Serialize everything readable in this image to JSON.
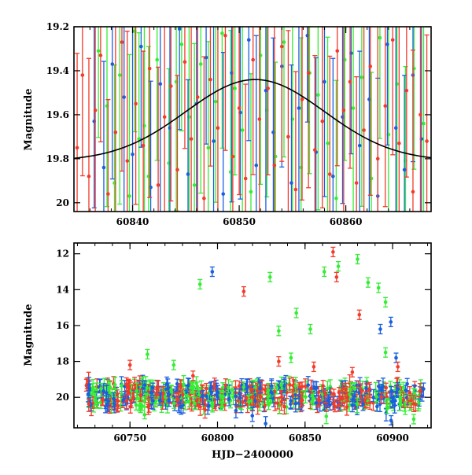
{
  "colors": {
    "green": "#33ee33",
    "blue": "#1a5fe0",
    "red": "#f23b2a",
    "model": "#000000",
    "axis": "#000000"
  },
  "chart_data": [
    {
      "type": "scatter",
      "title": "",
      "xlabel": "",
      "ylabel": "Magnitude",
      "xlim": [
        60834.5,
        60868
      ],
      "ylim": [
        20.04,
        19.2
      ],
      "y_inverted": true,
      "grid": false,
      "xticks": [
        60840,
        60850,
        60860
      ],
      "xtick_labels": [
        "60840",
        "60850",
        "60860"
      ],
      "yticks": [
        19.2,
        19.4,
        19.6,
        19.8,
        20.0
      ],
      "ytick_labels": [
        "19.2",
        "19.4",
        "19.6",
        "19.8",
        "20"
      ],
      "model_curve": {
        "center": 60851.5,
        "peak_mag": 19.44,
        "base_mag": 19.81,
        "width_days": 6.5
      },
      "series": [
        {
          "color": "green",
          "x": [
            60836.8,
            60837.6,
            60838.3,
            60838.8,
            60839.7,
            60840.2,
            60840.6,
            60841.1,
            60841.5,
            60842.3,
            60843.4,
            60844.1,
            60844.6,
            60845.3,
            60845.8,
            60846.4,
            60847.1,
            60847.8,
            60848.4,
            60849.2,
            60849.6,
            60850.3,
            60851.1,
            60852.0,
            60852.6,
            60853.4,
            60854.2,
            60855.0,
            60855.8,
            60856.6,
            60857.4,
            60858.3,
            60859.1,
            60859.9,
            60860.7,
            60861.5,
            60862.4,
            60863.2,
            60864.0,
            60864.8,
            60865.6,
            60866.4,
            60867.3
          ],
          "y": [
            19.31,
            19.56,
            19.91,
            19.42,
            19.97,
            19.22,
            19.71,
            19.65,
            19.88,
            19.35,
            19.82,
            19.45,
            19.28,
            19.61,
            19.92,
            19.37,
            19.75,
            19.54,
            19.23,
            19.86,
            19.48,
            19.67,
            19.95,
            19.33,
            19.58,
            19.79,
            19.27,
            19.62,
            19.84,
            19.41,
            19.51,
            19.73,
            19.98,
            19.35,
            19.57,
            19.43,
            19.89,
            19.25,
            19.69,
            19.46,
            19.81,
            19.39,
            19.64
          ]
        },
        {
          "color": "blue",
          "x": [
            60836.4,
            60837.3,
            60838.1,
            60839.2,
            60840.0,
            60840.8,
            60841.7,
            60842.6,
            60843.5,
            60844.4,
            60845.2,
            60846.0,
            60846.9,
            60847.6,
            60848.5,
            60849.3,
            60850.1,
            60850.9,
            60851.6,
            60852.5,
            60853.2,
            60854.0,
            60854.9,
            60855.6,
            60856.4,
            60857.2,
            60858.0,
            60858.8,
            60859.7,
            60860.5,
            60861.3,
            60862.2,
            60863.0,
            60863.9,
            60864.7,
            60865.5,
            60866.3,
            60867.1
          ],
          "y": [
            19.63,
            19.84,
            19.37,
            19.52,
            19.78,
            19.29,
            19.93,
            19.46,
            19.66,
            19.21,
            19.87,
            19.55,
            19.34,
            19.72,
            19.96,
            19.41,
            19.59,
            19.26,
            19.83,
            19.49,
            19.68,
            19.38,
            19.91,
            19.57,
            19.24,
            19.77,
            19.45,
            19.88,
            19.61,
            19.32,
            19.74,
            19.53,
            19.97,
            19.28,
            19.66,
            19.85,
            19.42,
            19.71
          ]
        },
        {
          "color": "red",
          "x": [
            60834.8,
            60835.3,
            60835.9,
            60836.5,
            60837.0,
            60837.7,
            60838.4,
            60839.0,
            60839.5,
            60840.3,
            60841.0,
            60841.6,
            60842.4,
            60843.0,
            60843.6,
            60844.2,
            60844.9,
            60845.5,
            60846.1,
            60846.7,
            60847.3,
            60848.0,
            60848.7,
            60849.4,
            60850.0,
            60850.6,
            60851.3,
            60851.9,
            60852.7,
            60853.3,
            60854.0,
            60854.6,
            60855.3,
            60855.9,
            60856.5,
            60857.1,
            60857.8,
            60858.5,
            60859.2,
            60859.8,
            60860.4,
            60861.0,
            60861.7,
            60862.3,
            60863.0,
            60863.7,
            60864.4,
            60865.0,
            60865.7,
            60866.3,
            60867.0,
            60867.6
          ],
          "y": [
            19.75,
            19.42,
            19.88,
            19.58,
            19.33,
            19.96,
            19.68,
            19.27,
            19.81,
            19.55,
            19.74,
            19.39,
            19.92,
            19.61,
            19.47,
            19.85,
            19.36,
            19.71,
            19.52,
            19.98,
            19.44,
            19.66,
            19.24,
            19.79,
            19.57,
            19.89,
            19.35,
            19.62,
            19.48,
            19.83,
            19.29,
            19.7,
            19.94,
            19.53,
            19.41,
            19.76,
            19.63,
            19.87,
            19.31,
            19.58,
            19.45,
            19.91,
            19.67,
            19.38,
            19.8,
            19.56,
            19.26,
            19.73,
            19.49,
            19.95,
            19.6,
            19.72
          ]
        }
      ]
    },
    {
      "type": "scatter",
      "title": "",
      "xlabel": "HJD−2400000",
      "ylabel": "Magnitude",
      "xlim": [
        60718,
        60922
      ],
      "ylim": [
        21.7,
        11.4
      ],
      "y_inverted": true,
      "grid": false,
      "xticks": [
        60750,
        60800,
        60850,
        60900
      ],
      "xtick_labels": [
        "60750",
        "60800",
        "60850",
        "60900"
      ],
      "yticks": [
        12,
        14,
        16,
        18,
        20
      ],
      "ytick_labels": [
        "12",
        "14",
        "16",
        "18",
        "20"
      ],
      "outliers": {
        "green": [
          [
            60760,
            17.6
          ],
          [
            60775,
            18.2
          ],
          [
            60790,
            13.7
          ],
          [
            60830,
            13.3
          ],
          [
            60835,
            16.3
          ],
          [
            60842,
            17.8
          ],
          [
            60845,
            15.3
          ],
          [
            60853,
            16.2
          ],
          [
            60861,
            13.0
          ],
          [
            60869,
            12.7
          ],
          [
            60880,
            12.3
          ],
          [
            60886,
            13.6
          ],
          [
            60892,
            13.9
          ],
          [
            60896,
            14.7
          ],
          [
            60896,
            17.5
          ]
        ],
        "blue": [
          [
            60797,
            13.0
          ],
          [
            60893,
            16.2
          ],
          [
            60899,
            15.8
          ],
          [
            60902,
            17.8
          ]
        ],
        "red": [
          [
            60750,
            18.2
          ],
          [
            60786,
            18.8
          ],
          [
            60815,
            14.1
          ],
          [
            60835,
            18.0
          ],
          [
            60855,
            18.3
          ],
          [
            60866,
            11.9
          ],
          [
            60868,
            13.3
          ],
          [
            60877,
            18.6
          ],
          [
            60881,
            15.4
          ],
          [
            60903,
            18.3
          ]
        ]
      }
    }
  ]
}
